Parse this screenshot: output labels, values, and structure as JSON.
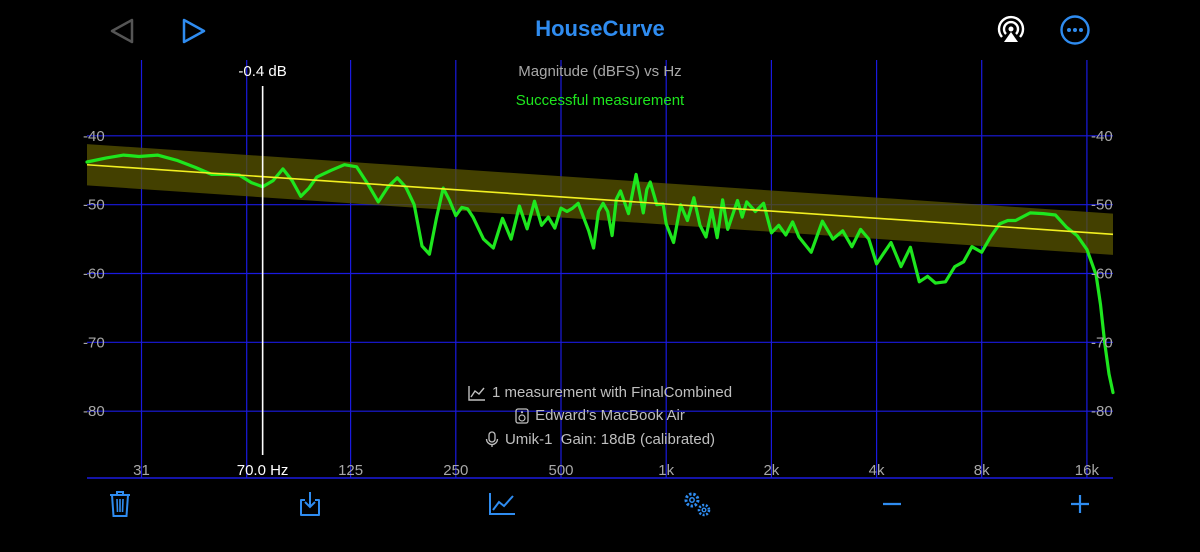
{
  "header": {
    "title": "HouseCurve",
    "back_icon": "triangle-left-icon",
    "play_icon": "triangle-right-icon",
    "airplay_icon": "airplay-icon",
    "more_icon": "ellipsis-circle-icon"
  },
  "plot": {
    "title": "Magnitude (dBFS) vs Hz",
    "status": "Successful measurement",
    "cursor_db": "-0.4 dB",
    "cursor_freq": "70.0 Hz",
    "cursor_freq_value": 70
  },
  "chart_data": {
    "type": "line",
    "title": "Magnitude (dBFS) vs Hz",
    "xscale": "log",
    "xlim": [
      22,
      19000
    ],
    "ylim": [
      -90,
      -30
    ],
    "grid": true,
    "x_ticks": [
      {
        "label": "31",
        "value": 31.5
      },
      {
        "label": "125",
        "value": 125
      },
      {
        "label": "250",
        "value": 250
      },
      {
        "label": "500",
        "value": 500
      },
      {
        "label": "1k",
        "value": 1000
      },
      {
        "label": "2k",
        "value": 2000
      },
      {
        "label": "4k",
        "value": 4000
      },
      {
        "label": "8k",
        "value": 8000
      },
      {
        "label": "16k",
        "value": 16000
      }
    ],
    "x_gridlines": [
      31.5,
      63,
      125,
      250,
      500,
      1000,
      2000,
      4000,
      8000,
      16000
    ],
    "y_ticks": [
      -40,
      -50,
      -60,
      -70,
      -80
    ],
    "target": {
      "x": [
        22,
        19000
      ],
      "y": [
        -44.2,
        -54.3
      ]
    },
    "target_band_width_db": 6,
    "series": [
      {
        "x": [
          22,
          25,
          28,
          31,
          35,
          40,
          45,
          50,
          55,
          60,
          65,
          70,
          75,
          80,
          85,
          90,
          95,
          100,
          110,
          120,
          130,
          140,
          150,
          160,
          170,
          180,
          190,
          200,
          210,
          220,
          230,
          240,
          250,
          260,
          270,
          280,
          300,
          320,
          340,
          360,
          380,
          400,
          420,
          440,
          460,
          480,
          500,
          520,
          540,
          560,
          600,
          620,
          640,
          660,
          680,
          700,
          720,
          740,
          780,
          820,
          840,
          860,
          880,
          900,
          940,
          980,
          1000,
          1050,
          1100,
          1150,
          1200,
          1250,
          1300,
          1350,
          1400,
          1450,
          1500,
          1600,
          1650,
          1700,
          1800,
          1900,
          2000,
          2100,
          2200,
          2300,
          2400,
          2600,
          2800,
          3000,
          3200,
          3400,
          3600,
          3800,
          4000,
          4200,
          4400,
          4700,
          5000,
          5300,
          5600,
          5900,
          6300,
          6700,
          7100,
          7500,
          8000,
          8500,
          9000,
          9500,
          10000,
          11000,
          12000,
          13000,
          14000,
          15000,
          16000,
          17000,
          17500,
          18000,
          18500,
          19000
        ],
        "y": [
          -43.8,
          -43.2,
          -42.8,
          -43.0,
          -42.8,
          -43.6,
          -44.6,
          -45.6,
          -45.6,
          -45.7,
          -46.8,
          -47.4,
          -46.5,
          -44.8,
          -46.5,
          -48.8,
          -47.6,
          -46.0,
          -45.0,
          -44.2,
          -44.5,
          -47.0,
          -49.6,
          -47.4,
          -46.1,
          -47.5,
          -50.0,
          -56.0,
          -57.2,
          -52.0,
          -47.6,
          -49.4,
          -51.6,
          -50.4,
          -50.6,
          -51.8,
          -55.0,
          -56.3,
          -52.0,
          -55.0,
          -50.2,
          -53.5,
          -49.5,
          -53.0,
          -51.8,
          -53.4,
          -50.5,
          -51.0,
          -50.5,
          -49.8,
          -53.8,
          -56.3,
          -51.0,
          -49.8,
          -51.0,
          -54.5,
          -49.2,
          -48.0,
          -51.3,
          -45.6,
          -48.4,
          -51.2,
          -47.8,
          -46.7,
          -50.0,
          -49.9,
          -52.8,
          -55.5,
          -50.0,
          -52.3,
          -49.0,
          -53.0,
          -54.7,
          -50.7,
          -54.8,
          -49.3,
          -53.6,
          -49.4,
          -51.8,
          -49.6,
          -51.0,
          -49.8,
          -54.1,
          -53.0,
          -54.4,
          -52.5,
          -54.7,
          -56.9,
          -52.4,
          -55.0,
          -53.8,
          -56.1,
          -53.6,
          -55.0,
          -58.6,
          -57.0,
          -55.5,
          -59.0,
          -56.2,
          -61.2,
          -60.4,
          -61.4,
          -61.2,
          -59.0,
          -58.3,
          -56.1,
          -56.9,
          -54.6,
          -52.8,
          -52.3,
          -52.3,
          -51.2,
          -51.3,
          -51.5,
          -53.3,
          -54.5,
          -56.5,
          -60.2,
          -64.5,
          -70.2,
          -74.6,
          -77.3
        ]
      }
    ]
  },
  "info": {
    "measurements": "1 measurement with FinalCombined",
    "device": "Edward’s MacBook Air",
    "mic": "Umik-1  Gain: 18dB (calibrated)",
    "measurements_icon": "chart-line-icon",
    "device_icon": "speaker-icon",
    "mic_icon": "microphone-icon"
  },
  "toolbar": {
    "delete_icon": "trash-icon",
    "import_icon": "import-tray-icon",
    "chart_icon": "chart-line-icon",
    "settings_icon": "gears-icon",
    "zoom_out_icon": "minus-icon",
    "zoom_in_icon": "plus-icon"
  },
  "colors": {
    "accent": "#2f8cf0",
    "grid": "#1a1adf",
    "measurement": "#1ee61e",
    "target": "#f2f020",
    "band": "#5a5600",
    "axis_text": "#a8a8a8"
  }
}
